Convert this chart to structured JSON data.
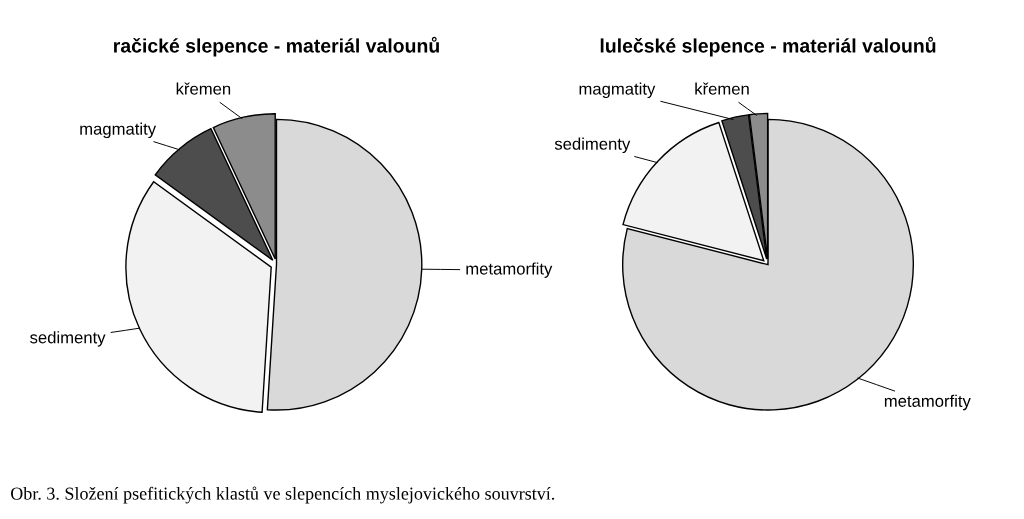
{
  "chart_data": [
    {
      "type": "pie",
      "title": "račické slepence - materiál valounů",
      "categories": [
        "metamorfity",
        "sedimenty",
        "magmatity",
        "křemen"
      ],
      "values": [
        51,
        34,
        8,
        7
      ],
      "colors": [
        "#d9d9d9",
        "#f2f2f2",
        "#4d4d4d",
        "#8c8c8c"
      ],
      "annotations": [
        "Obr. 3. Složení psefitických klastů ve slepencích myslejovického souvrství."
      ]
    },
    {
      "type": "pie",
      "title": "lulečské slepence - materiál valounů",
      "categories": [
        "metamorfity",
        "sedimenty",
        "magmatity",
        "křemen"
      ],
      "values": [
        79,
        16,
        3,
        2
      ],
      "colors": [
        "#d9d9d9",
        "#f2f2f2",
        "#4d4d4d",
        "#8c8c8c"
      ]
    }
  ]
}
